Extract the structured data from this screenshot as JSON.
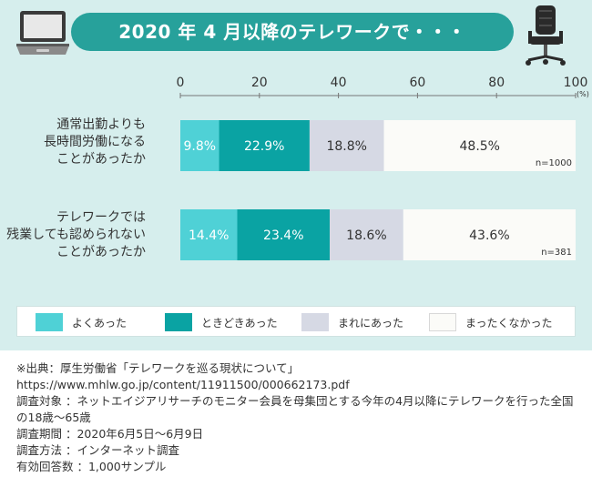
{
  "title": "2020 年 4 月以降のテレワークで・・・",
  "icons": {
    "left": "laptop-icon",
    "right": "office-chair-icon"
  },
  "colors": {
    "panel_bg": "#d6eeed",
    "banner": "#27a19b",
    "yoku": "#4fd1d6",
    "tokidoki": "#0aa3a3",
    "mare": "#d6d9e4",
    "mattaku": "#fbfbf8"
  },
  "chart_data": {
    "type": "bar",
    "orientation": "horizontal",
    "stacked": true,
    "xlim": [
      0,
      100
    ],
    "x_ticks": [
      "0",
      "20",
      "40",
      "60",
      "80",
      "100"
    ],
    "x_unit": "(%)",
    "categories": [
      {
        "lines": [
          "通常出勤よりも",
          "長時間労働になる",
          "ことがあったか"
        ],
        "n_label": "n=1000"
      },
      {
        "lines": [
          "テレワークでは",
          "残業しても認められない",
          "ことがあったか"
        ],
        "n_label": "n=381"
      }
    ],
    "series": [
      {
        "name": "よくあった",
        "values": [
          9.8,
          14.4
        ],
        "labels": [
          "9.8%",
          "14.4%"
        ],
        "color": "#4fd1d6",
        "label_color": "#ffffff"
      },
      {
        "name": "ときどきあった",
        "values": [
          22.9,
          23.4
        ],
        "labels": [
          "22.9%",
          "23.4%"
        ],
        "color": "#0aa3a3",
        "label_color": "#ffffff"
      },
      {
        "name": "まれにあった",
        "values": [
          18.8,
          18.6
        ],
        "labels": [
          "18.8%",
          "18.6%"
        ],
        "color": "#d6d9e4",
        "label_color": "#333333"
      },
      {
        "name": "まったくなかった",
        "values": [
          48.5,
          43.6
        ],
        "labels": [
          "48.5%",
          "43.6%"
        ],
        "color": "#fbfbf8",
        "label_color": "#333333"
      }
    ],
    "legend_placement": "bottom",
    "grid": false
  },
  "notes": [
    "※出典：厚生労働省「テレワークを巡る現状について」",
    "https://www.mhlw.go.jp/content/11911500/000662173.pdf",
    "調査対象 ：ネットエイジアリサーチのモニター会員を母集団とする今年の4月以降にテレワークを行った全国の18歳～65歳",
    "調査期間 ：2020年6月5日～6月9日",
    "調査方法 ：インターネット調査",
    "有効回答数 ：1,000サンプル"
  ]
}
